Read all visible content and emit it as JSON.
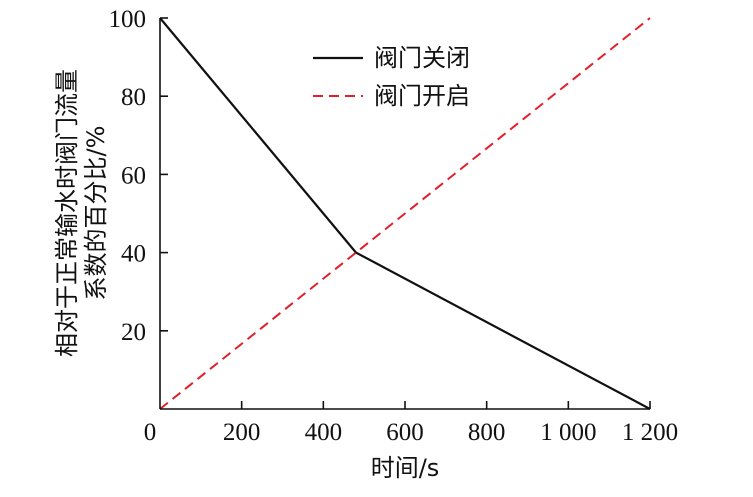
{
  "chart_data": {
    "type": "line",
    "title": "",
    "xlabel": "时间/s",
    "ylabel_lines": [
      "相对于正常输水时阀门流量",
      "系数的百分比/%"
    ],
    "xlim": [
      0,
      1200
    ],
    "ylim": [
      0,
      100
    ],
    "x_ticks": [
      0,
      200,
      400,
      600,
      800,
      1000,
      1200
    ],
    "x_tick_labels": [
      "0",
      "200",
      "400",
      "600",
      "800",
      "1 000",
      "1 200"
    ],
    "y_ticks": [
      20,
      40,
      60,
      80,
      100
    ],
    "y_tick_labels": [
      "20",
      "40",
      "60",
      "80",
      "100"
    ],
    "grid": false,
    "legend_position": "top-center",
    "series": [
      {
        "name": "阀门关闭",
        "style": "solid",
        "color": "#111111",
        "x": [
          0,
          480,
          1200
        ],
        "y": [
          100,
          40,
          0
        ]
      },
      {
        "name": "阀门开启",
        "style": "dashed",
        "color": "#e0202a",
        "x": [
          0,
          1200
        ],
        "y": [
          0,
          100
        ]
      }
    ]
  }
}
